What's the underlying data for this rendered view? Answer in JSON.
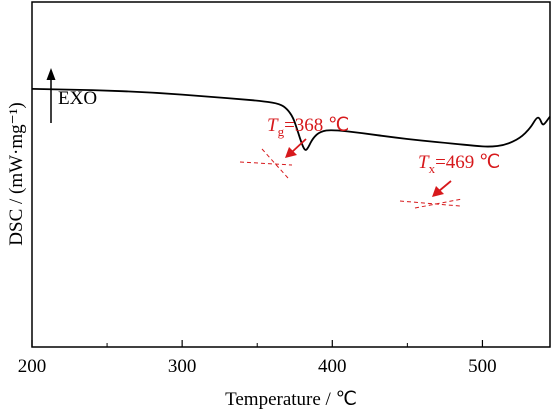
{
  "chart_data": {
    "type": "line",
    "xlabel": "Temperature / ℃",
    "ylabel": "DSC / (mW·mg⁻¹)",
    "xlim": [
      200,
      545
    ],
    "ylim": [
      0,
      1
    ],
    "x_ticks": [
      "200",
      "300",
      "400",
      "500"
    ],
    "y_ticks": "none",
    "grid": false,
    "exo_label": "EXO",
    "series": [
      {
        "color": "#000000",
        "points": [
          [
            200,
            0.748
          ],
          [
            240,
            0.745
          ],
          [
            280,
            0.738
          ],
          [
            320,
            0.725
          ],
          [
            340,
            0.718
          ],
          [
            355,
            0.712
          ],
          [
            365,
            0.705
          ],
          [
            370,
            0.69
          ],
          [
            374,
            0.665
          ],
          [
            377,
            0.625
          ],
          [
            380,
            0.585
          ],
          [
            382,
            0.568
          ],
          [
            384,
            0.578
          ],
          [
            387,
            0.605
          ],
          [
            392,
            0.625
          ],
          [
            400,
            0.63
          ],
          [
            420,
            0.62
          ],
          [
            440,
            0.608
          ],
          [
            460,
            0.598
          ],
          [
            480,
            0.59
          ],
          [
            495,
            0.583
          ],
          [
            505,
            0.58
          ],
          [
            515,
            0.585
          ],
          [
            525,
            0.605
          ],
          [
            532,
            0.635
          ],
          [
            536,
            0.665
          ],
          [
            538,
            0.665
          ],
          [
            540,
            0.642
          ],
          [
            542,
            0.65
          ],
          [
            545,
            0.668
          ]
        ]
      }
    ],
    "annotations": [
      {
        "sub": "g",
        "value_text": "=368 ℃",
        "x": 368,
        "color": "#d7191c"
      },
      {
        "sub": "x",
        "value_text": "=469 ℃",
        "x": 469,
        "color": "#d7191c"
      }
    ]
  }
}
